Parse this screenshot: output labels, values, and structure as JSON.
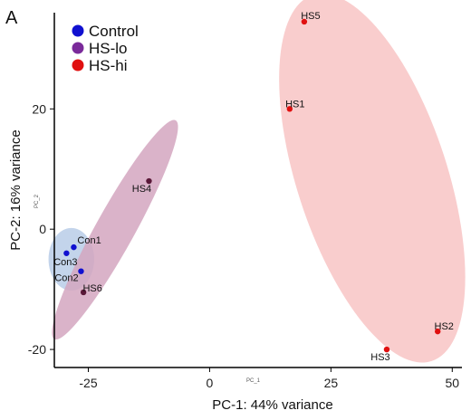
{
  "panel_letter": "A",
  "colors": {
    "control": "#1010d0",
    "hs_lo": "#7a2a9a",
    "hs_hi": "#e01010",
    "hs_lo_point": "#5a1838",
    "ellipse_control": "#b8cce8",
    "ellipse_lo": "#d4a6c0",
    "ellipse_hi": "#f8c4c4"
  },
  "chart_data": {
    "type": "scatter",
    "xlabel": "PC-1: 44% variance",
    "ylabel": "PC-2: 16% variance",
    "small_xlabel": "PC_1",
    "small_ylabel": "PC_2",
    "xlim": [
      -32,
      52
    ],
    "ylim": [
      -23,
      36
    ],
    "xticks": [
      -25,
      0,
      25,
      50
    ],
    "yticks": [
      -20,
      0,
      20
    ],
    "xtick_labels": [
      "-25",
      "0",
      "25",
      "50"
    ],
    "ytick_labels": [
      "-20",
      "0",
      "20"
    ],
    "legend_position": "top-left",
    "series": [
      {
        "name": "Control",
        "color_key": "control",
        "points": [
          {
            "label": "Con1",
            "x": -28,
            "y": -3
          },
          {
            "label": "Con3",
            "x": -29.5,
            "y": -4
          },
          {
            "label": "Con2",
            "x": -26.5,
            "y": -7
          }
        ]
      },
      {
        "name": "HS-lo",
        "color_key": "hs_lo",
        "points": [
          {
            "label": "HS4",
            "x": -12.5,
            "y": 8
          },
          {
            "label": "HS6",
            "x": -26,
            "y": -10.5
          }
        ]
      },
      {
        "name": "HS-hi",
        "color_key": "hs_hi",
        "points": [
          {
            "label": "HS5",
            "x": 19.5,
            "y": 34.5
          },
          {
            "label": "HS1",
            "x": 16.5,
            "y": 20
          },
          {
            "label": "HS2",
            "x": 47,
            "y": -17
          },
          {
            "label": "HS3",
            "x": 36.5,
            "y": -20
          }
        ]
      }
    ],
    "ellipses": [
      {
        "group": "Control",
        "color_key": "ellipse_control",
        "cx": -28.5,
        "cy": -5,
        "rx": 4.7,
        "ry": 5.2,
        "angle": 0
      },
      {
        "group": "HS-lo",
        "color_key": "ellipse_lo",
        "cx": -19.5,
        "cy": -0.1,
        "rx": 4.0,
        "ry": 20.8,
        "angle": 29
      },
      {
        "group": "HS-hi",
        "color_key": "ellipse_hi",
        "cx": 33.5,
        "cy": 8.5,
        "rx": 15.5,
        "ry": 32.0,
        "angle": -18
      }
    ]
  }
}
